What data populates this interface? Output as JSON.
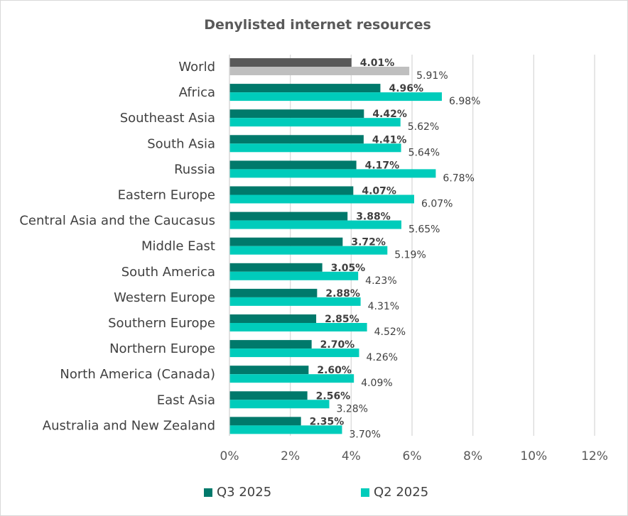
{
  "chart_data": {
    "type": "bar",
    "orientation": "horizontal",
    "title": "Denylisted internet resources",
    "categories": [
      "World",
      "Africa",
      "Southeast Asia",
      "South Asia",
      "Russia",
      "Eastern Europe",
      "Central Asia and the Caucasus",
      "Middle East",
      "South America",
      "Western Europe",
      "Southern Europe",
      "Northern Europe",
      "North America (Canada)",
      "East Asia",
      "Australia and New Zealand"
    ],
    "series": [
      {
        "name": "Q3 2025",
        "color": "#00796b",
        "highlight_color": "#595959",
        "values": [
          4.01,
          4.96,
          4.42,
          4.41,
          4.17,
          4.07,
          3.88,
          3.72,
          3.05,
          2.88,
          2.85,
          2.7,
          2.6,
          2.56,
          2.35
        ],
        "labels": [
          "4.01%",
          "4.96%",
          "4.42%",
          "4.41%",
          "4.17%",
          "4.07%",
          "3.88%",
          "3.72%",
          "3.05%",
          "2.88%",
          "2.85%",
          "2.70%",
          "2.60%",
          "2.56%",
          "2.35%"
        ]
      },
      {
        "name": "Q2 2025",
        "color": "#00ccbb",
        "highlight_color": "#bfbfbf",
        "values": [
          5.91,
          6.98,
          5.62,
          5.64,
          6.78,
          6.07,
          5.65,
          5.19,
          4.23,
          4.31,
          4.52,
          4.26,
          4.09,
          3.28,
          3.7
        ],
        "labels": [
          "5.91%",
          "6.98%",
          "5.62%",
          "5.64%",
          "6.78%",
          "6.07%",
          "5.65%",
          "5.19%",
          "4.23%",
          "4.31%",
          "4.52%",
          "4.26%",
          "4.09%",
          "3.28%",
          "3.70%"
        ]
      }
    ],
    "xlim": [
      0,
      12
    ],
    "x_ticks": [
      "0%",
      "2%",
      "4%",
      "6%",
      "8%",
      "10%",
      "12%"
    ],
    "grid": true,
    "legend_position": "bottom"
  }
}
